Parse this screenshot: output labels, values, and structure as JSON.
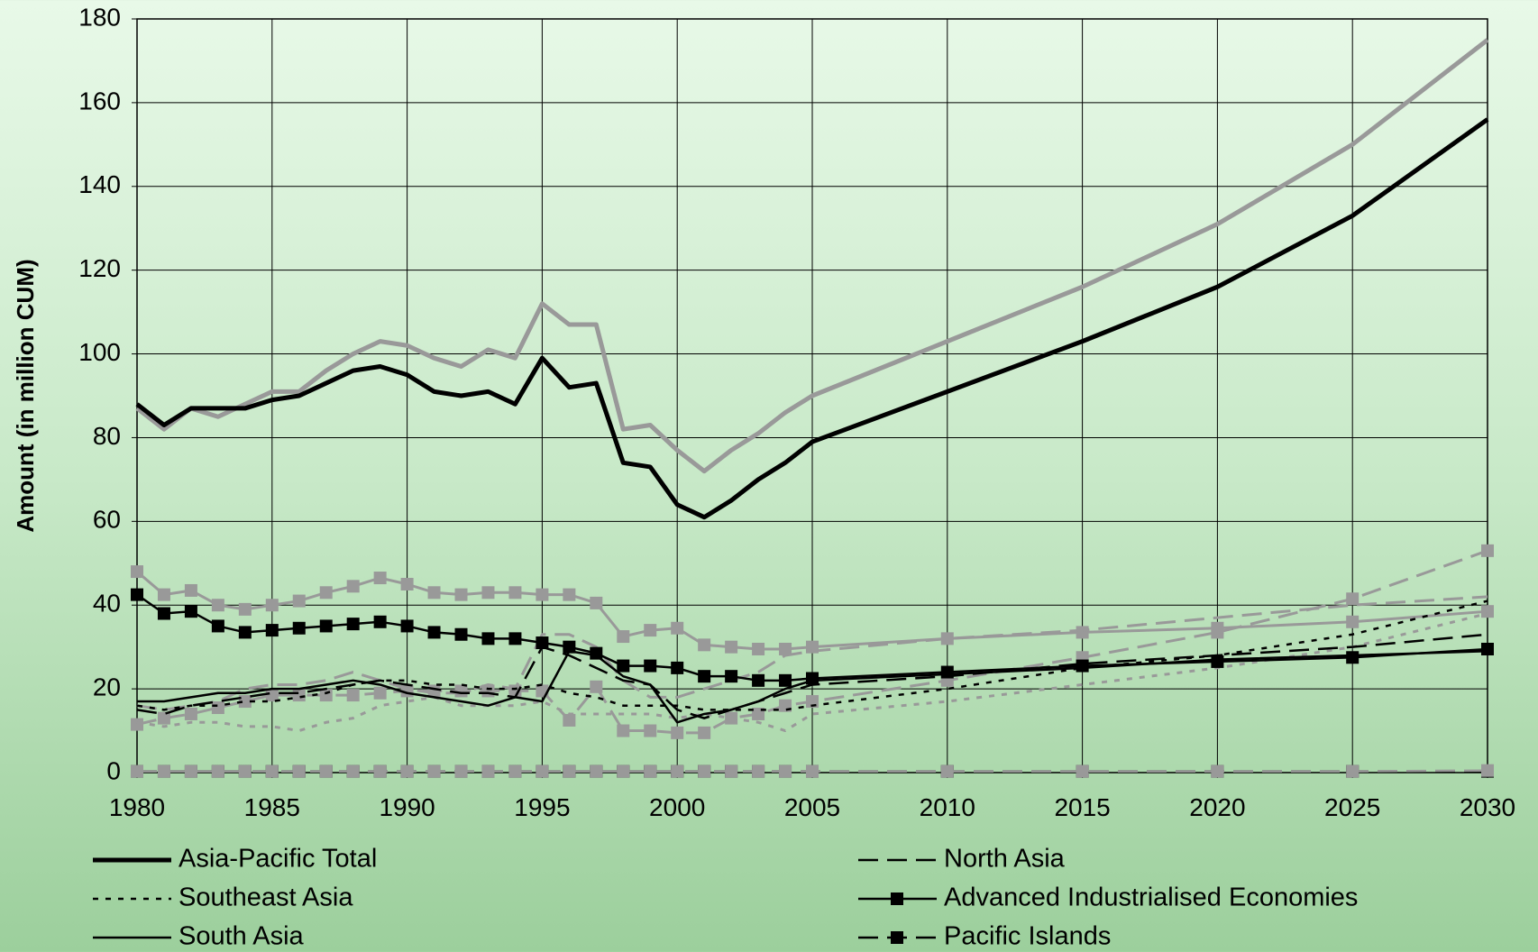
{
  "chart_data": {
    "type": "line",
    "y_label": "Amount (in million CUM)",
    "x": [
      1980,
      1981,
      1982,
      1983,
      1984,
      1985,
      1986,
      1987,
      1988,
      1989,
      1990,
      1991,
      1992,
      1993,
      1994,
      1995,
      1996,
      1997,
      1998,
      1999,
      2000,
      2001,
      2002,
      2003,
      2004,
      2005,
      2010,
      2015,
      2020,
      2025,
      2030
    ],
    "xlim": [
      1980,
      2030
    ],
    "xticks": [
      1980,
      1985,
      1990,
      1995,
      2000,
      2005,
      2010,
      2015,
      2020,
      2025,
      2030
    ],
    "ylim": [
      0,
      180
    ],
    "yticks": [
      0,
      20,
      40,
      60,
      80,
      100,
      120,
      140,
      160,
      180
    ],
    "grid": true,
    "series": [
      {
        "color": "#999999",
        "line_style": "solid",
        "width": 5,
        "marker": "none",
        "values": [
          87,
          82,
          87,
          85,
          88,
          91,
          91,
          96,
          100,
          103,
          102,
          99,
          97,
          101,
          99,
          112,
          107,
          107,
          82,
          83,
          77,
          72,
          77,
          81,
          86,
          90,
          103,
          116,
          131,
          150,
          175
        ]
      },
      {
        "color": "#999999",
        "line_style": "solid",
        "width": 3,
        "marker": "square",
        "values": [
          48,
          42.5,
          43.5,
          40,
          39,
          40,
          41,
          43,
          44.5,
          46.5,
          45,
          43,
          42.5,
          43,
          43,
          42.5,
          42.5,
          40.5,
          32.5,
          34,
          34.5,
          30.5,
          30,
          29.5,
          29.5,
          30,
          32,
          33.5,
          34.5,
          36,
          38.5
        ]
      },
      {
        "color": "#999999",
        "line_style": "dash",
        "width": 3,
        "marker": "square",
        "values": [
          11.5,
          13,
          14,
          15.5,
          17,
          18.5,
          18.5,
          18.5,
          18.5,
          19,
          19.5,
          19.5,
          19.5,
          19.5,
          19.5,
          19.5,
          12.5,
          20.5,
          10,
          10,
          9.5,
          9.5,
          13,
          14,
          16,
          17,
          22,
          27.5,
          33.5,
          41.5,
          53
        ]
      },
      {
        "color": "#999999",
        "line_style": "dash",
        "width": 3,
        "marker": "none",
        "values": [
          16,
          15,
          16,
          17,
          20,
          21,
          21,
          22,
          24,
          22,
          20,
          19,
          19,
          21,
          20,
          33,
          33,
          30,
          22,
          18,
          18,
          20,
          22,
          24,
          28,
          29,
          32,
          34,
          37,
          40,
          42
        ]
      },
      {
        "color": "#999999",
        "line_style": "dot",
        "width": 3,
        "marker": "none",
        "values": [
          12,
          11,
          12,
          12,
          11,
          11,
          10,
          12,
          13,
          16,
          17,
          18,
          16,
          16,
          16,
          17,
          14,
          14,
          14,
          14,
          13,
          14,
          13,
          12,
          10,
          14,
          17,
          21,
          25,
          30,
          38
        ]
      },
      {
        "name": "Asia-Pacific Total",
        "color": "#000000",
        "line_style": "solid",
        "width": 5,
        "marker": "none",
        "values": [
          88,
          83,
          87,
          87,
          87,
          89,
          90,
          93,
          96,
          97,
          95,
          91,
          90,
          91,
          88,
          99,
          92,
          93,
          74,
          73,
          64,
          61,
          65,
          70,
          74,
          79,
          91,
          103,
          116,
          133,
          156
        ]
      },
      {
        "name": "North Asia",
        "color": "#000000",
        "line_style": "dash",
        "width": 2.5,
        "marker": "none",
        "values": [
          15,
          14,
          16,
          17,
          18,
          19,
          19,
          20,
          21,
          22,
          21,
          20,
          19,
          19,
          18,
          30,
          28,
          25,
          22,
          21,
          15,
          13,
          15,
          17,
          19,
          21,
          23,
          26,
          28,
          30,
          33
        ]
      },
      {
        "name": "Southeast Asia",
        "color": "#000000",
        "line_style": "dot",
        "width": 2.5,
        "marker": "none",
        "values": [
          16,
          15,
          16,
          16,
          17,
          17,
          18,
          19,
          21,
          22,
          22,
          21,
          21,
          20,
          20,
          21,
          19,
          18,
          16,
          16,
          16,
          15,
          15,
          15,
          15,
          16,
          20,
          25,
          28,
          33,
          41
        ]
      },
      {
        "name": "Advanced Industrialised Economies",
        "color": "#000000",
        "line_style": "solid",
        "width": 2.5,
        "marker": "square",
        "values": [
          42.5,
          38,
          38.5,
          35,
          33.5,
          34,
          34.5,
          35,
          35.5,
          36,
          35,
          33.5,
          33,
          32,
          32,
          31,
          30,
          28.5,
          25.5,
          25.5,
          25,
          23,
          23,
          22,
          22,
          22.5,
          24,
          25.5,
          26.5,
          27.5,
          29.5
        ]
      },
      {
        "name": "South Asia",
        "color": "#000000",
        "line_style": "solid",
        "width": 2.5,
        "marker": "none",
        "values": [
          17,
          17,
          18,
          19,
          19,
          20,
          20,
          21,
          22,
          21,
          19,
          18,
          17,
          16,
          18,
          17,
          29,
          28,
          23,
          21,
          12,
          14,
          15,
          17,
          20,
          22,
          23.5,
          25,
          27,
          28,
          29
        ]
      },
      {
        "name": "Pacific Islands",
        "color": "#000000",
        "line_style": "dash",
        "width": 2.5,
        "marker": "square",
        "values": [
          0.3,
          0.3,
          0.3,
          0.3,
          0.3,
          0.3,
          0.3,
          0.3,
          0.3,
          0.3,
          0.3,
          0.3,
          0.3,
          0.3,
          0.3,
          0.3,
          0.3,
          0.3,
          0.3,
          0.3,
          0.3,
          0.3,
          0.3,
          0.3,
          0.3,
          0.3,
          0.3,
          0.3,
          0.3,
          0.3,
          0.3
        ]
      },
      {
        "color": "#999999",
        "line_style": "dash",
        "width": 2.5,
        "marker": "square",
        "values": [
          0.3,
          0.3,
          0.3,
          0.3,
          0.3,
          0.3,
          0.3,
          0.3,
          0.3,
          0.3,
          0.3,
          0.3,
          0.3,
          0.3,
          0.3,
          0.3,
          0.3,
          0.3,
          0.3,
          0.3,
          0.3,
          0.3,
          0.3,
          0.3,
          0.3,
          0.3,
          0.3,
          0.3,
          0.3,
          0.3,
          0.5
        ]
      }
    ]
  }
}
